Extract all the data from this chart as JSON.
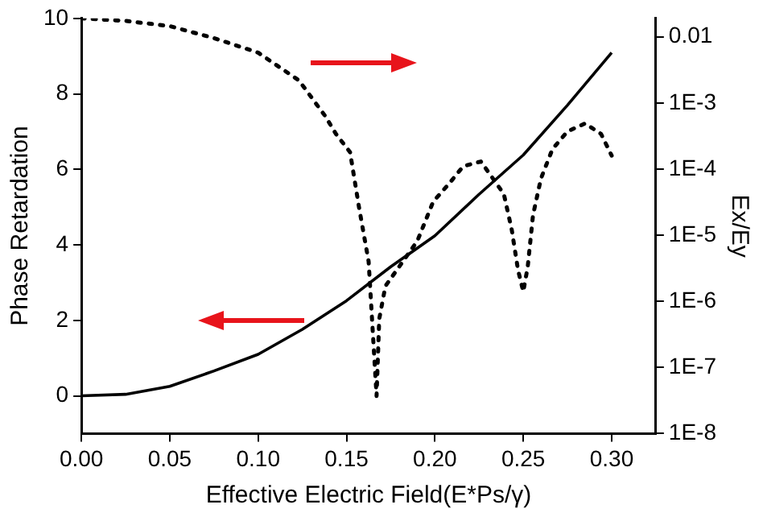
{
  "chart_data": {
    "type": "line",
    "xlabel": "Effective Electric Field(E*Ps/γ)",
    "ylabel": "Phase Retardation",
    "y2label": "Ex/Ey",
    "xlim": [
      0,
      0.325
    ],
    "xticks": [
      {
        "value": 0,
        "label": "0.00"
      },
      {
        "value": 0.05,
        "label": "0.05"
      },
      {
        "value": 0.1,
        "label": "0.10"
      },
      {
        "value": 0.15,
        "label": "0.15"
      },
      {
        "value": 0.2,
        "label": "0.20"
      },
      {
        "value": 0.25,
        "label": "0.25"
      },
      {
        "value": 0.3,
        "label": "0.30"
      }
    ],
    "ylim": [
      -1,
      10
    ],
    "yticks": [
      0,
      2,
      4,
      6,
      8,
      10
    ],
    "y2lim": [
      1e-08,
      0.019
    ],
    "y2ticks": [
      {
        "value": 1e-08,
        "label": "1E-8"
      },
      {
        "value": 1e-07,
        "label": "1E-7"
      },
      {
        "value": 1e-06,
        "label": "1E-6"
      },
      {
        "value": 1e-05,
        "label": "1E-5"
      },
      {
        "value": 0.0001,
        "label": "1E-4"
      },
      {
        "value": 0.001,
        "label": "1E-3"
      },
      {
        "value": 0.01,
        "label": "0.01"
      }
    ],
    "log": "y2",
    "grid": false,
    "legend": false,
    "marker": "none",
    "series": [
      {
        "color": "#000000",
        "line_style": "solid",
        "x": [
          0,
          0.025,
          0.05,
          0.075,
          0.1,
          0.125,
          0.15,
          0.175,
          0.2,
          0.225,
          0.25,
          0.275,
          0.3
        ],
        "values": [
          0,
          0.04,
          0.25,
          0.66,
          1.1,
          1.76,
          2.52,
          3.42,
          4.24,
          5.34,
          6.38,
          7.7,
          9.09
        ]
      },
      {
        "color": "#000000",
        "line_style": "dotted",
        "axis": "y2",
        "x": [
          0,
          0.025,
          0.05,
          0.075,
          0.1,
          0.123,
          0.138,
          0.144,
          0.152,
          0.157,
          0.1625,
          0.167,
          0.1685,
          0.172,
          0.19,
          0.199,
          0.208,
          0.216,
          0.226,
          0.239,
          0.2435,
          0.247,
          0.25,
          0.2525,
          0.2555,
          0.26,
          0.2665,
          0.275,
          0.285,
          0.294,
          0.3
        ],
        "values": [
          0.019,
          0.0174,
          0.0145,
          0.00955,
          0.00575,
          0.0022,
          0.00063,
          0.00034,
          0.00018,
          2.7e-05,
          4e-06,
          3.7e-08,
          5.4e-07,
          1.7e-06,
          8.1e-06,
          3.2e-05,
          6e-05,
          0.00011,
          0.00013,
          4.2e-05,
          1.2e-05,
          3e-06,
          1.4e-06,
          3.3e-06,
          2e-05,
          7.2e-05,
          0.0002,
          0.00037,
          0.00049,
          0.00034,
          0.00016
        ]
      }
    ]
  }
}
